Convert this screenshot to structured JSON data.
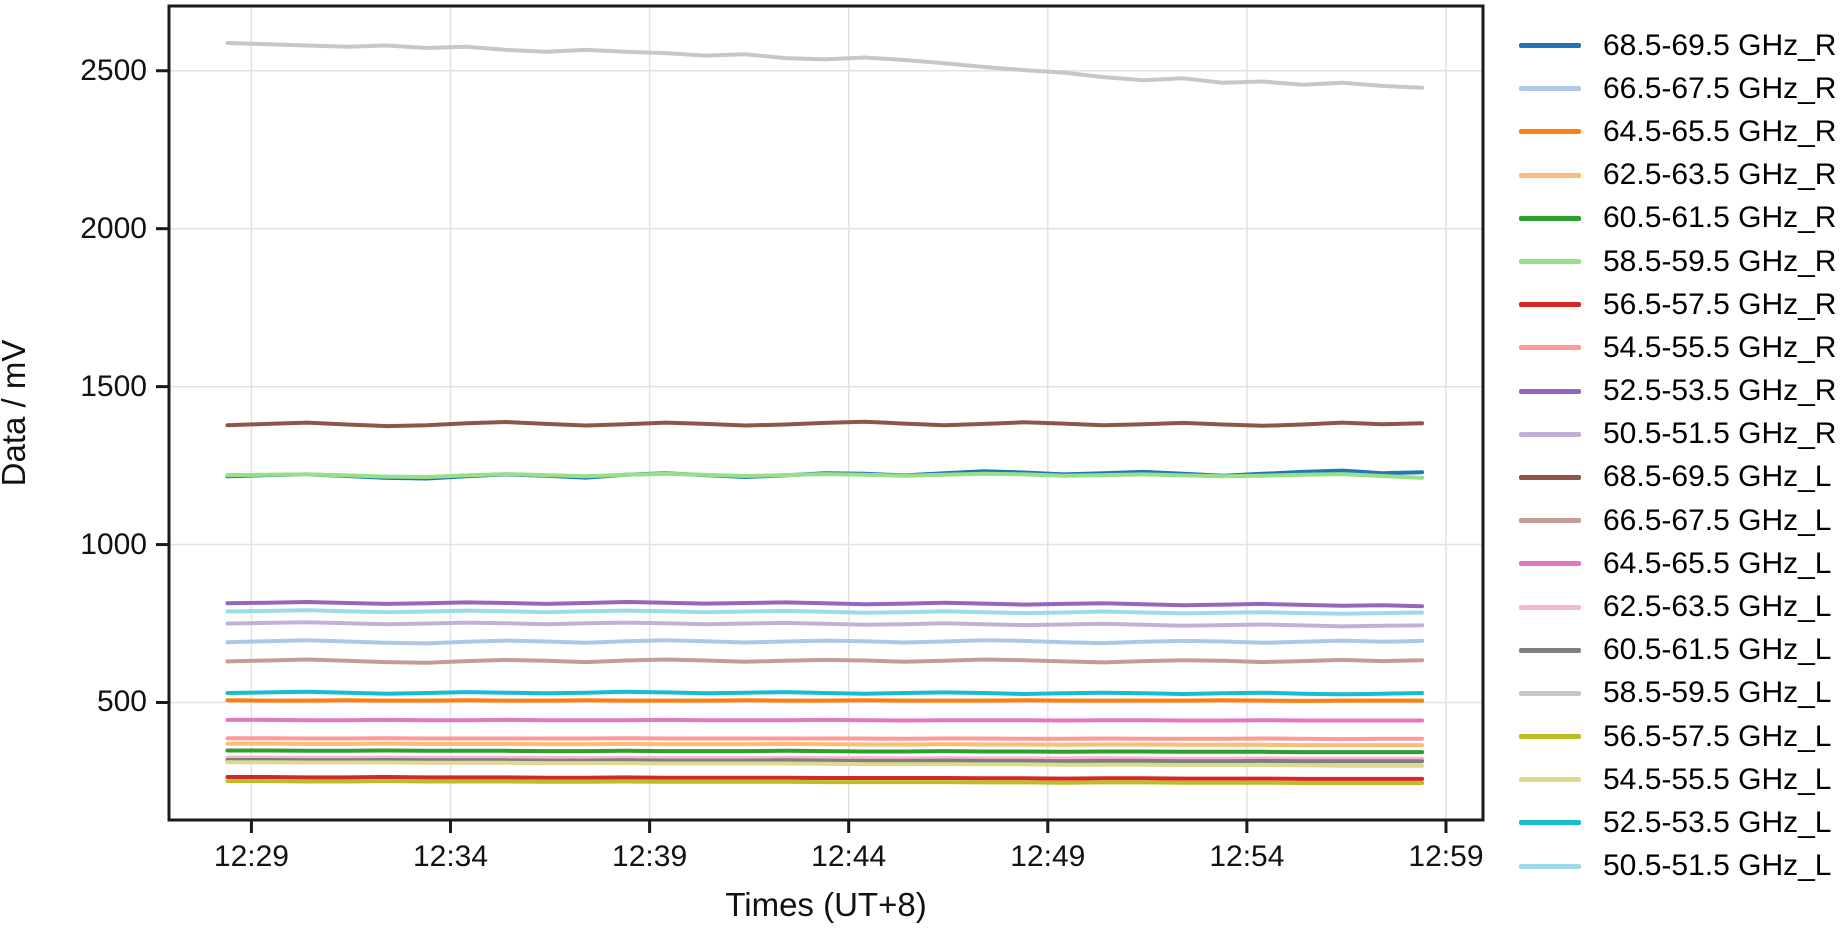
{
  "figure": {
    "background": "#ffffff"
  },
  "axes": {
    "xlabel": "Times (UT+8)",
    "ylabel": "Data / mV"
  },
  "colors": {
    "grid": "#e2e2e2",
    "spine": "#1a1a1a",
    "tick_label": "#111111"
  },
  "chart_data": {
    "type": "line",
    "title": "",
    "xlabel": "Times (UT+8)",
    "ylabel": "Data / mV",
    "grid": true,
    "legend_position": "right-outside",
    "x_axis_is_time": true,
    "xlim_minutes": [
      26.93,
      59.93
    ],
    "ylim": [
      128,
      2705
    ],
    "x_tick_minutes": [
      29,
      34,
      39,
      44,
      49,
      54,
      59
    ],
    "x_tick_labels": [
      "12:29",
      "12:34",
      "12:39",
      "12:44",
      "12:49",
      "12:54",
      "12:59"
    ],
    "y_ticks": [
      500,
      1000,
      1500,
      2000,
      2500
    ],
    "y_tick_labels": [
      "500",
      "1000",
      "1500",
      "2000",
      "2500"
    ],
    "x_minutes": [
      28.4,
      29.4,
      30.4,
      31.4,
      32.4,
      33.4,
      34.4,
      35.4,
      36.4,
      37.4,
      38.4,
      39.4,
      40.4,
      41.4,
      42.4,
      43.4,
      44.4,
      45.4,
      46.4,
      47.4,
      48.4,
      49.4,
      50.4,
      51.4,
      52.4,
      53.4,
      54.4,
      55.4,
      56.4,
      57.4,
      58.4
    ],
    "series": [
      {
        "name": "68.5-69.5 GHz_R",
        "color": "#1f77b4",
        "values": [
          1216,
          1220,
          1222,
          1217,
          1211,
          1209,
          1216,
          1222,
          1218,
          1212,
          1221,
          1226,
          1220,
          1214,
          1219,
          1226,
          1224,
          1219,
          1226,
          1232,
          1228,
          1222,
          1226,
          1230,
          1224,
          1218,
          1224,
          1230,
          1234,
          1226,
          1229
        ]
      },
      {
        "name": "66.5-67.5 GHz_R",
        "color": "#aec7e8",
        "values": [
          691,
          694,
          697,
          693,
          689,
          687,
          692,
          696,
          693,
          689,
          694,
          697,
          694,
          690,
          693,
          696,
          694,
          690,
          693,
          697,
          695,
          691,
          688,
          692,
          695,
          693,
          689,
          692,
          696,
          692,
          695
        ]
      },
      {
        "name": "64.5-65.5 GHz_R",
        "color": "#ff7f0e",
        "values": [
          507,
          506,
          506,
          507,
          506,
          506,
          507,
          506,
          506,
          507,
          506,
          506,
          506,
          507,
          506,
          506,
          507,
          506,
          506,
          506,
          507,
          506,
          506,
          506,
          506,
          507,
          506,
          505,
          506,
          506,
          506
        ]
      },
      {
        "name": "62.5-63.5 GHz_R",
        "color": "#ffbb78",
        "values": [
          370,
          370,
          369,
          369,
          370,
          369,
          369,
          369,
          368,
          368,
          369,
          368,
          368,
          368,
          369,
          368,
          367,
          367,
          368,
          367,
          367,
          366,
          367,
          367,
          366,
          366,
          366,
          365,
          365,
          365,
          365
        ]
      },
      {
        "name": "60.5-61.5 GHz_R",
        "color": "#2ca02c",
        "values": [
          348,
          348,
          347,
          347,
          348,
          347,
          347,
          347,
          346,
          346,
          347,
          346,
          346,
          346,
          347,
          346,
          345,
          345,
          346,
          345,
          345,
          344,
          345,
          345,
          344,
          344,
          344,
          343,
          343,
          343,
          343
        ]
      },
      {
        "name": "58.5-59.5 GHz_R",
        "color": "#98df8a",
        "values": [
          1220,
          1221,
          1222,
          1219,
          1215,
          1214,
          1219,
          1223,
          1220,
          1216,
          1221,
          1224,
          1221,
          1217,
          1220,
          1223,
          1221,
          1218,
          1221,
          1224,
          1222,
          1218,
          1220,
          1222,
          1219,
          1216,
          1218,
          1221,
          1223,
          1217,
          1211
        ]
      },
      {
        "name": "56.5-57.5 GHz_R",
        "color": "#d62728",
        "values": [
          264,
          264,
          263,
          263,
          264,
          263,
          263,
          263,
          262,
          262,
          263,
          262,
          262,
          262,
          262,
          261,
          261,
          261,
          261,
          260,
          260,
          259,
          260,
          260,
          259,
          259,
          259,
          258,
          258,
          258,
          258
        ]
      },
      {
        "name": "54.5-55.5 GHz_R",
        "color": "#ff9896",
        "values": [
          387,
          387,
          386,
          386,
          387,
          386,
          386,
          386,
          386,
          386,
          387,
          386,
          386,
          386,
          386,
          386,
          386,
          385,
          386,
          386,
          385,
          385,
          386,
          385,
          385,
          385,
          386,
          385,
          384,
          385,
          385
        ]
      },
      {
        "name": "52.5-53.5 GHz_R",
        "color": "#9467bd",
        "values": [
          814,
          816,
          818,
          815,
          812,
          814,
          817,
          815,
          812,
          815,
          818,
          816,
          813,
          815,
          817,
          814,
          811,
          813,
          816,
          813,
          810,
          812,
          814,
          811,
          808,
          810,
          812,
          809,
          806,
          808,
          805
        ]
      },
      {
        "name": "50.5-51.5 GHz_R",
        "color": "#c5b0d5",
        "values": [
          750,
          752,
          754,
          751,
          748,
          750,
          753,
          751,
          748,
          751,
          753,
          751,
          748,
          750,
          752,
          749,
          746,
          748,
          751,
          748,
          745,
          747,
          749,
          746,
          743,
          745,
          747,
          744,
          741,
          743,
          744
        ]
      },
      {
        "name": "68.5-69.5 GHz_L",
        "color": "#8c564b",
        "values": [
          1378,
          1382,
          1386,
          1380,
          1375,
          1378,
          1384,
          1388,
          1382,
          1377,
          1381,
          1386,
          1382,
          1377,
          1380,
          1385,
          1389,
          1383,
          1378,
          1382,
          1387,
          1383,
          1378,
          1381,
          1385,
          1380,
          1376,
          1380,
          1386,
          1381,
          1384
        ]
      },
      {
        "name": "66.5-67.5 GHz_L",
        "color": "#c49c94",
        "values": [
          630,
          633,
          636,
          632,
          628,
          626,
          631,
          635,
          632,
          628,
          633,
          636,
          633,
          629,
          632,
          635,
          633,
          629,
          632,
          636,
          634,
          630,
          627,
          631,
          634,
          632,
          628,
          631,
          635,
          631,
          634
        ]
      },
      {
        "name": "64.5-65.5 GHz_L",
        "color": "#e377c2",
        "values": [
          445,
          445,
          444,
          444,
          445,
          444,
          444,
          445,
          444,
          444,
          444,
          445,
          444,
          444,
          444,
          445,
          444,
          443,
          444,
          444,
          444,
          443,
          444,
          444,
          443,
          443,
          444,
          443,
          443,
          443,
          443
        ]
      },
      {
        "name": "62.5-63.5 GHz_L",
        "color": "#f7b6d2",
        "values": [
          326,
          326,
          325,
          325,
          326,
          325,
          325,
          325,
          325,
          324,
          325,
          324,
          324,
          324,
          325,
          324,
          324,
          323,
          324,
          323,
          323,
          323,
          324,
          323,
          322,
          322,
          323,
          322,
          322,
          322,
          322
        ]
      },
      {
        "name": "60.5-61.5 GHz_L",
        "color": "#7f7f7f",
        "values": [
          318,
          318,
          317,
          317,
          318,
          317,
          317,
          317,
          316,
          316,
          317,
          316,
          316,
          316,
          317,
          316,
          315,
          315,
          316,
          315,
          315,
          314,
          315,
          315,
          314,
          314,
          315,
          314,
          314,
          314,
          314
        ]
      },
      {
        "name": "58.5-59.5 GHz_L",
        "color": "#c7c7c7",
        "values": [
          2588,
          2584,
          2580,
          2576,
          2580,
          2572,
          2576,
          2566,
          2560,
          2566,
          2560,
          2556,
          2548,
          2552,
          2540,
          2536,
          2542,
          2534,
          2524,
          2512,
          2502,
          2494,
          2480,
          2470,
          2476,
          2462,
          2466,
          2456,
          2462,
          2452,
          2446
        ]
      },
      {
        "name": "56.5-57.5 GHz_L",
        "color": "#bcbd22",
        "values": [
          251,
          251,
          250,
          250,
          251,
          250,
          250,
          250,
          249,
          249,
          250,
          249,
          249,
          249,
          249,
          248,
          248,
          248,
          248,
          247,
          247,
          246,
          247,
          247,
          246,
          246,
          246,
          245,
          245,
          245,
          245
        ]
      },
      {
        "name": "54.5-55.5 GHz_L",
        "color": "#dbdb8d",
        "values": [
          311,
          311,
          310,
          310,
          310,
          309,
          309,
          309,
          308,
          308,
          308,
          307,
          307,
          307,
          307,
          306,
          305,
          305,
          305,
          304,
          304,
          303,
          303,
          303,
          302,
          302,
          302,
          301,
          300,
          300,
          300
        ]
      },
      {
        "name": "52.5-53.5 GHz_L",
        "color": "#17becf",
        "values": [
          530,
          532,
          534,
          531,
          528,
          530,
          533,
          531,
          529,
          531,
          534,
          532,
          529,
          531,
          533,
          530,
          528,
          530,
          532,
          530,
          527,
          529,
          531,
          529,
          527,
          529,
          531,
          528,
          526,
          528,
          530
        ]
      },
      {
        "name": "50.5-51.5 GHz_L",
        "color": "#9edae5",
        "values": [
          788,
          790,
          792,
          789,
          786,
          788,
          791,
          789,
          786,
          789,
          791,
          789,
          786,
          788,
          790,
          787,
          784,
          786,
          789,
          786,
          783,
          785,
          788,
          785,
          782,
          784,
          786,
          783,
          781,
          783,
          785
        ]
      }
    ]
  }
}
